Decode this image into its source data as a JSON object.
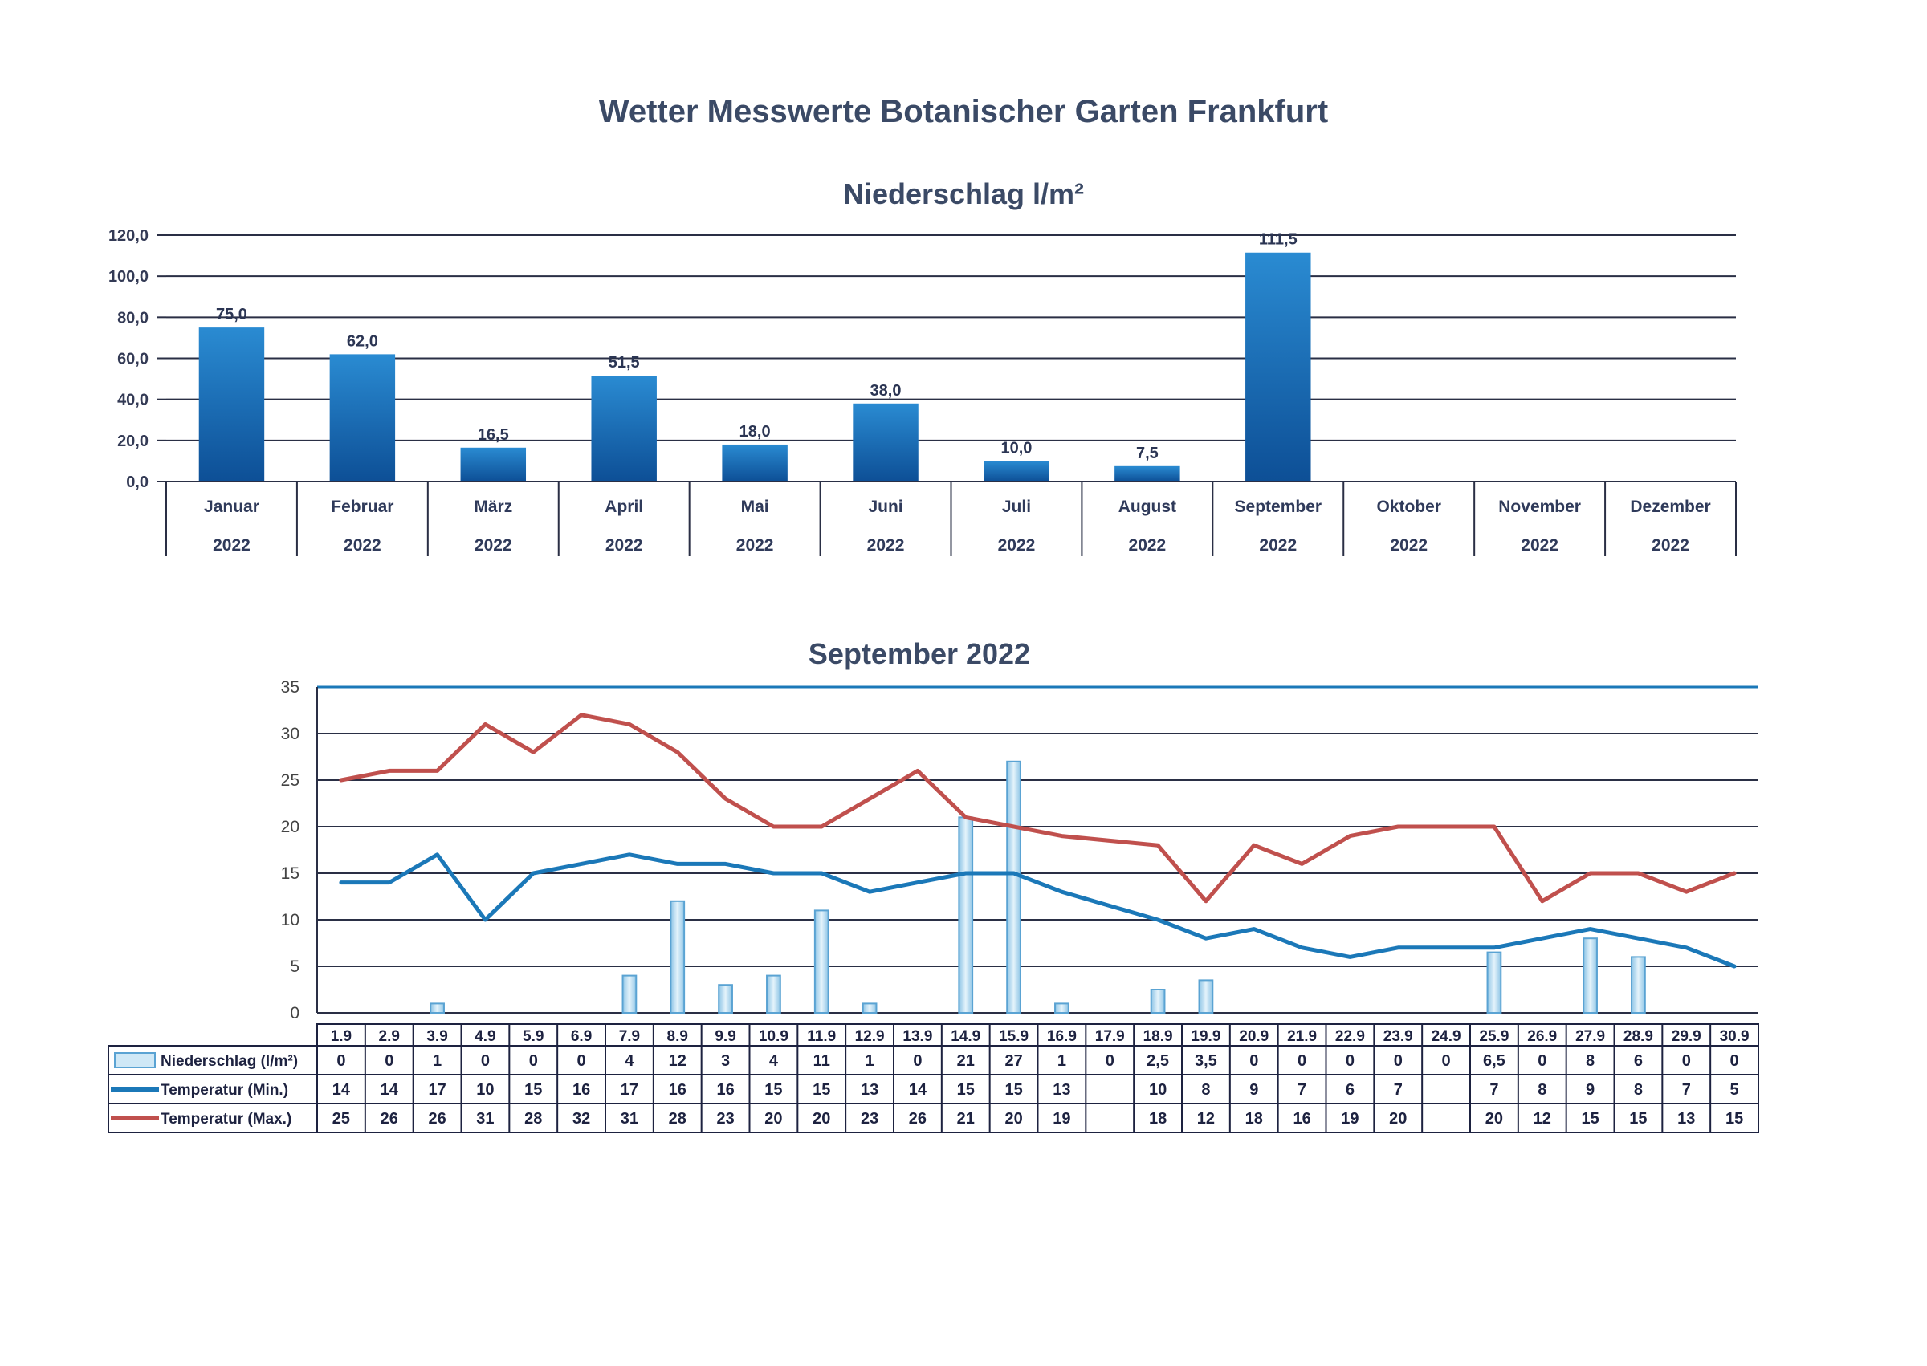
{
  "page": {
    "title": "Wetter Messwerte Botanischer Garten Frankfurt"
  },
  "chart_data": [
    {
      "type": "bar",
      "title": "Niederschlag l/m²",
      "ylim": [
        0,
        120
      ],
      "yticks": [
        "0,0",
        "20,0",
        "40,0",
        "60,0",
        "80,0",
        "100,0",
        "120,0"
      ],
      "grid": true,
      "categories": [
        "Januar",
        "Februar",
        "März",
        "April",
        "Mai",
        "Juni",
        "Juli",
        "August",
        "September",
        "Oktober",
        "November",
        "Dezember"
      ],
      "year_label": "2022",
      "values": [
        75.0,
        62.0,
        16.5,
        51.5,
        18.0,
        38.0,
        10.0,
        7.5,
        111.5,
        null,
        null,
        null
      ],
      "value_labels": [
        "75,0",
        "62,0",
        "16,5",
        "51,5",
        "18,0",
        "38,0",
        "10,0",
        "7,5",
        "111,5",
        "",
        "",
        ""
      ],
      "bar_color": "#1a6fb8"
    },
    {
      "type": "bar+line",
      "title": "September 2022",
      "ylim": [
        0,
        35
      ],
      "yticks": [
        "0",
        "5",
        "10",
        "15",
        "20",
        "25",
        "30",
        "35"
      ],
      "grid": true,
      "categories": [
        "1.9",
        "2.9",
        "3.9",
        "4.9",
        "5.9",
        "6.9",
        "7.9",
        "8.9",
        "9.9",
        "10.9",
        "11.9",
        "12.9",
        "13.9",
        "14.9",
        "15.9",
        "16.9",
        "17.9",
        "18.9",
        "19.9",
        "20.9",
        "21.9",
        "22.9",
        "23.9",
        "24.9",
        "25.9",
        "26.9",
        "27.9",
        "28.9",
        "29.9",
        "30.9"
      ],
      "series": [
        {
          "name": "Niederschlag (l/m²)",
          "kind": "bar",
          "color": "#a9d4ec",
          "values": [
            0,
            0,
            1,
            0,
            0,
            0,
            4,
            12,
            3,
            4,
            11,
            1,
            0,
            21,
            27,
            1,
            0,
            2.5,
            3.5,
            0,
            0,
            0,
            0,
            0,
            6.5,
            0,
            8,
            6,
            0,
            0
          ],
          "labels": [
            "0",
            "0",
            "1",
            "0",
            "0",
            "0",
            "4",
            "12",
            "3",
            "4",
            "11",
            "1",
            "0",
            "21",
            "27",
            "1",
            "0",
            "2,5",
            "3,5",
            "0",
            "0",
            "0",
            "0",
            "0",
            "6,5",
            "0",
            "8",
            "6",
            "0",
            "0"
          ]
        },
        {
          "name": "Temperatur (Min.)",
          "kind": "line",
          "color": "#1b78b8",
          "values": [
            14,
            14,
            17,
            10,
            15,
            16,
            17,
            16,
            16,
            15,
            15,
            13,
            14,
            15,
            15,
            13,
            null,
            10,
            8,
            9,
            7,
            6,
            7,
            null,
            7,
            8,
            9,
            8,
            7,
            5
          ],
          "labels": [
            "14",
            "14",
            "17",
            "10",
            "15",
            "16",
            "17",
            "16",
            "16",
            "15",
            "15",
            "13",
            "14",
            "15",
            "15",
            "13",
            "",
            "10",
            "8",
            "9",
            "7",
            "6",
            "7",
            "",
            "7",
            "8",
            "9",
            "8",
            "7",
            "5"
          ]
        },
        {
          "name": "Temperatur (Max.)",
          "kind": "line",
          "color": "#c0504d",
          "values": [
            25,
            26,
            26,
            31,
            28,
            32,
            31,
            28,
            23,
            20,
            20,
            23,
            26,
            21,
            20,
            19,
            null,
            18,
            12,
            18,
            16,
            19,
            20,
            null,
            20,
            12,
            15,
            15,
            13,
            15
          ],
          "labels": [
            "25",
            "26",
            "26",
            "31",
            "28",
            "32",
            "31",
            "28",
            "23",
            "20",
            "20",
            "23",
            "26",
            "21",
            "20",
            "19",
            "",
            "18",
            "12",
            "18",
            "16",
            "19",
            "20",
            "",
            "20",
            "12",
            "15",
            "15",
            "13",
            "15"
          ]
        }
      ]
    }
  ]
}
